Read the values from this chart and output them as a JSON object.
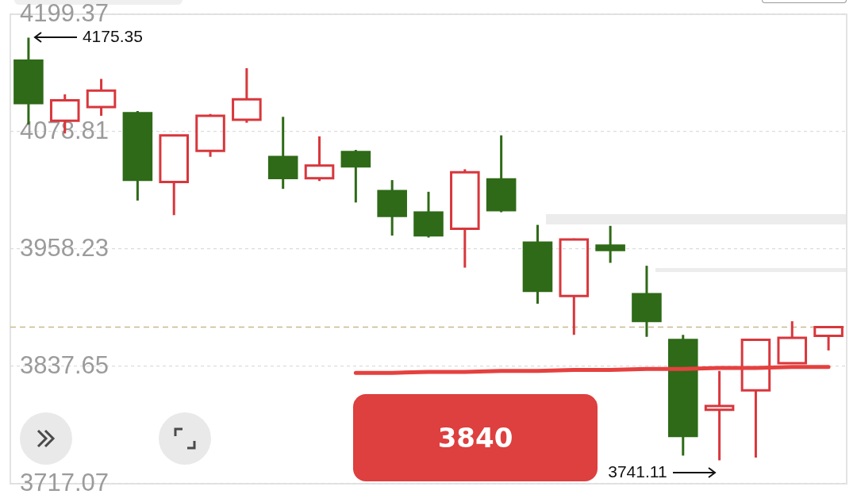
{
  "chart_data": {
    "type": "candlestick",
    "categories": [
      null,
      null,
      null,
      null,
      null,
      null,
      null,
      null,
      null,
      null,
      null,
      null,
      null,
      null,
      null,
      null,
      null,
      null,
      null,
      null,
      null,
      null,
      null
    ],
    "series": [
      {
        "colors": [
          "#2e6a17",
          "#d8373c",
          "#d8373c",
          "#2e6a17",
          "#d8373c",
          "#d8373c",
          "#d8373c",
          "#2e6a17",
          "#d8373c",
          "#2e6a17",
          "#2e6a17",
          "#2e6a17",
          "#d8373c",
          "#2e6a17",
          "#2e6a17",
          "#d8373c",
          "#2e6a17",
          "#2e6a17",
          "#2e6a17",
          "#d8373c",
          "#d8373c",
          "#d8373c",
          "#d8373c"
        ],
        "ohlc": [
          [
            4153,
            4175.35,
            4086,
            4107
          ],
          [
            4090,
            4117,
            4077,
            4111
          ],
          [
            4104,
            4133,
            4095,
            4121
          ],
          [
            4099,
            4100,
            4008,
            4028
          ],
          [
            4027,
            4075,
            3993,
            4075
          ],
          [
            4059,
            4097,
            4053,
            4095
          ],
          [
            4091,
            4144,
            4088,
            4112
          ],
          [
            4054,
            4094,
            4020,
            4030
          ],
          [
            4031,
            4074,
            4028,
            4044
          ],
          [
            4059,
            4060,
            4006,
            4042
          ],
          [
            4019,
            4029,
            3972,
            3991
          ],
          [
            3997,
            4017,
            3970,
            3971
          ],
          [
            3979,
            4040,
            3939,
            4037
          ],
          [
            4031,
            4075,
            3996,
            3997
          ],
          [
            3966,
            3983,
            3902,
            3914
          ],
          [
            3910,
            3969,
            3870,
            3968
          ],
          [
            3963,
            3982,
            3944,
            3956
          ],
          [
            3913,
            3941,
            3868,
            3883
          ],
          [
            3866,
            3870,
            3746,
            3765
          ],
          [
            3793,
            3833,
            3741.11,
            3797
          ],
          [
            3813,
            3866,
            3744,
            3865
          ],
          [
            3841,
            3884,
            3841,
            3867
          ],
          [
            3869,
            3878,
            3854,
            3878
          ]
        ]
      },
      {
        "type": "line",
        "color": "#e5413f",
        "values": [
          null,
          null,
          null,
          null,
          null,
          null,
          null,
          null,
          null,
          3831,
          3831,
          3832,
          3832,
          3833,
          3833,
          3834,
          3834,
          3835,
          3835,
          3836,
          3836,
          3837,
          3837
        ]
      }
    ],
    "ylim": [
      3717.07,
      4199.37
    ],
    "yticks": [
      3717.07,
      3837.65,
      3958.23,
      4078.81,
      4199.37
    ],
    "grid": "y",
    "tick_labels": "y",
    "ref_lines": [
      {
        "axis": "y",
        "value": 3878,
        "color": "#c8b98e",
        "line_style": "dashed"
      }
    ],
    "annotations": [
      "4175.35",
      "3741.11",
      "3840"
    ]
  }
}
